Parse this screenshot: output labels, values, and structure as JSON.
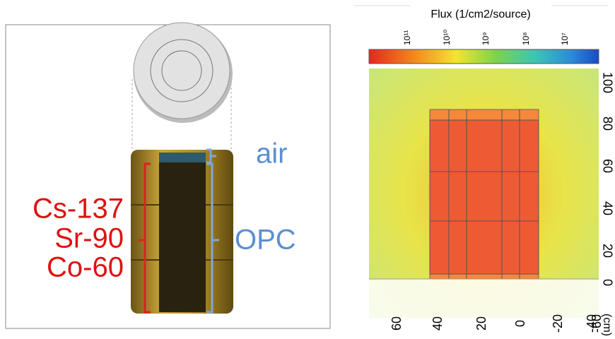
{
  "left_panel": {
    "labels": {
      "air": "air",
      "nuclides": [
        "Cs-137",
        "Sr-90",
        "Co-60"
      ],
      "matrix": "OPC"
    }
  },
  "right_panel": {
    "title": "Flux (1/cm2/source)",
    "colorbar_labels": [
      "10¹¹",
      "10¹⁰",
      "10⁹",
      "10⁸",
      "10⁷"
    ],
    "y_labels": [
      "100",
      "80",
      "60",
      "40",
      "20",
      "0"
    ],
    "y_unit": "(cm)",
    "x_labels": [
      "60",
      "40",
      "20",
      "0",
      "-20",
      "-40",
      "-60"
    ]
  }
}
